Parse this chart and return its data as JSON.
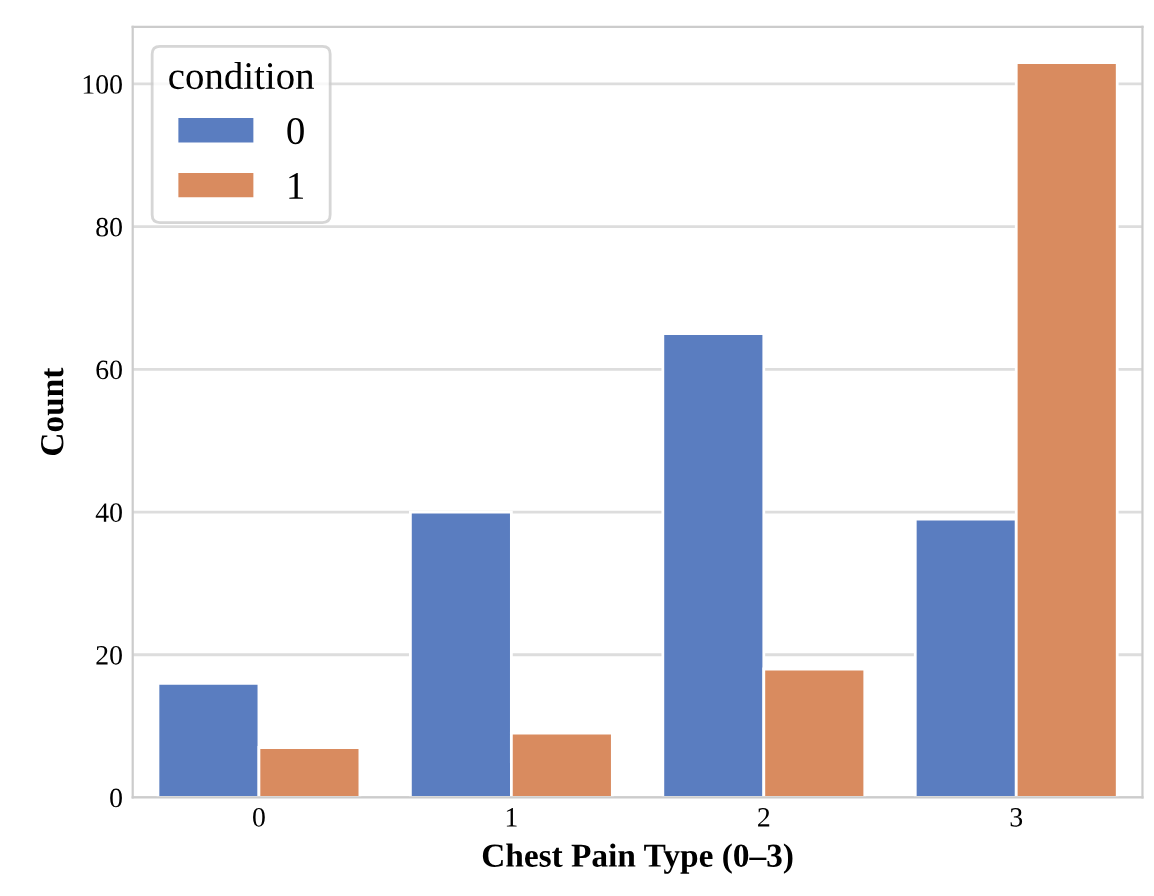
{
  "chart_data": {
    "type": "bar",
    "xlabel": "Chest Pain Type (0–3)",
    "ylabel": "Count",
    "legend_title": "condition",
    "categories": [
      "0",
      "1",
      "2",
      "3"
    ],
    "series": [
      {
        "name": "0",
        "color": "#5a7dc0",
        "values": [
          16,
          40,
          65,
          39
        ]
      },
      {
        "name": "1",
        "color": "#d98b5f",
        "values": [
          7,
          9,
          18,
          103
        ]
      }
    ],
    "ylim": [
      0,
      108
    ],
    "yticks": [
      0,
      20,
      40,
      60,
      80,
      100
    ],
    "grid": "y",
    "legend": "top left"
  }
}
